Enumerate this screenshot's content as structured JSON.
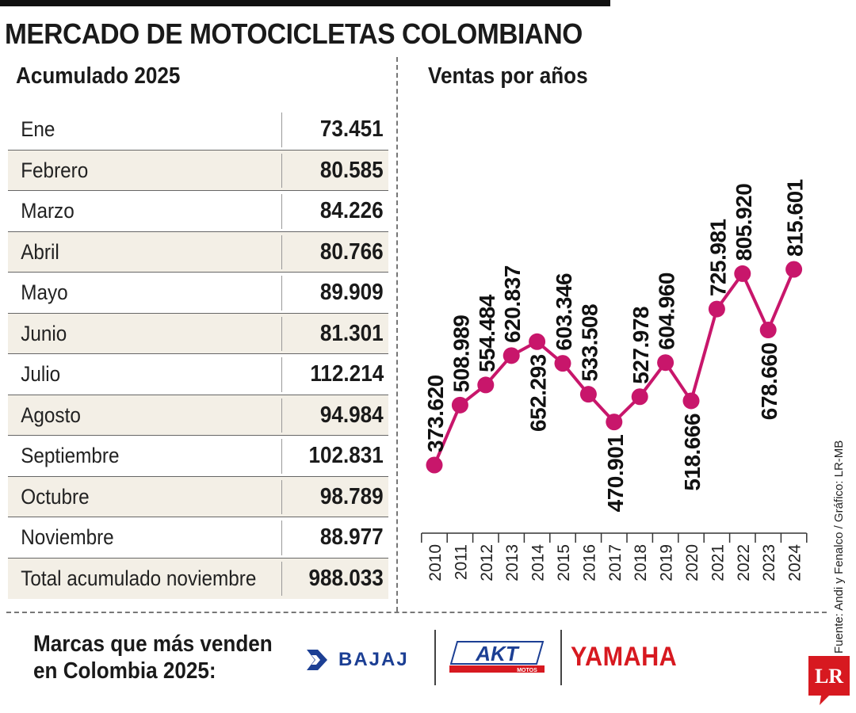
{
  "title": "MERCADO DE MOTOCICLETAS COLOMBIANO",
  "accumulated": {
    "title": "Acumulado 2025",
    "rows": [
      {
        "label": "Ene",
        "value": "73.451"
      },
      {
        "label": "Febrero",
        "value": "80.585"
      },
      {
        "label": "Marzo",
        "value": "84.226"
      },
      {
        "label": "Abril",
        "value": "80.766"
      },
      {
        "label": "Mayo",
        "value": "89.909"
      },
      {
        "label": "Junio",
        "value": "81.301"
      },
      {
        "label": "Julio",
        "value": "112.214"
      },
      {
        "label": "Agosto",
        "value": "94.984"
      },
      {
        "label": "Septiembre",
        "value": "102.831"
      },
      {
        "label": "Octubre",
        "value": "98.789"
      },
      {
        "label": "Noviembre",
        "value": "88.977"
      },
      {
        "label": "Total acumulado noviembre",
        "value": "988.033"
      }
    ]
  },
  "chart_data": {
    "type": "line",
    "title": "Ventas por años",
    "x": [
      "2010",
      "2011",
      "2012",
      "2013",
      "2014",
      "2015",
      "2016",
      "2017",
      "2018",
      "2019",
      "2020",
      "2021",
      "2022",
      "2023",
      "2024"
    ],
    "series": [
      {
        "values": [
          373620,
          508989,
          554484,
          620837,
          652293,
          603346,
          533508,
          470901,
          527978,
          604960,
          518666,
          725981,
          805920,
          678660,
          815601
        ],
        "labels": [
          "373.620",
          "508.989",
          "554.484",
          "620.837",
          "652.293",
          "603.346",
          "533.508",
          "470.901",
          "527.978",
          "604.960",
          "518.666",
          "725.981",
          "805.920",
          "678.660",
          "815.601"
        ],
        "label_positions": [
          "above",
          "above",
          "above",
          "above",
          "below",
          "above",
          "above",
          "below",
          "above",
          "above",
          "below",
          "above",
          "above",
          "below",
          "above"
        ]
      }
    ],
    "grid": false,
    "line_color": "#c8166b"
  },
  "source": "Fuente: Andi y Fenalco / Gráfico: LR-MB",
  "brands": {
    "title_line1": "Marcas que más venden",
    "title_line2": "en Colombia 2025:",
    "items": [
      "BAJAJ",
      "AKT",
      "YAMAHA"
    ],
    "akt_sub": "MOTOS"
  },
  "logo": "LR"
}
